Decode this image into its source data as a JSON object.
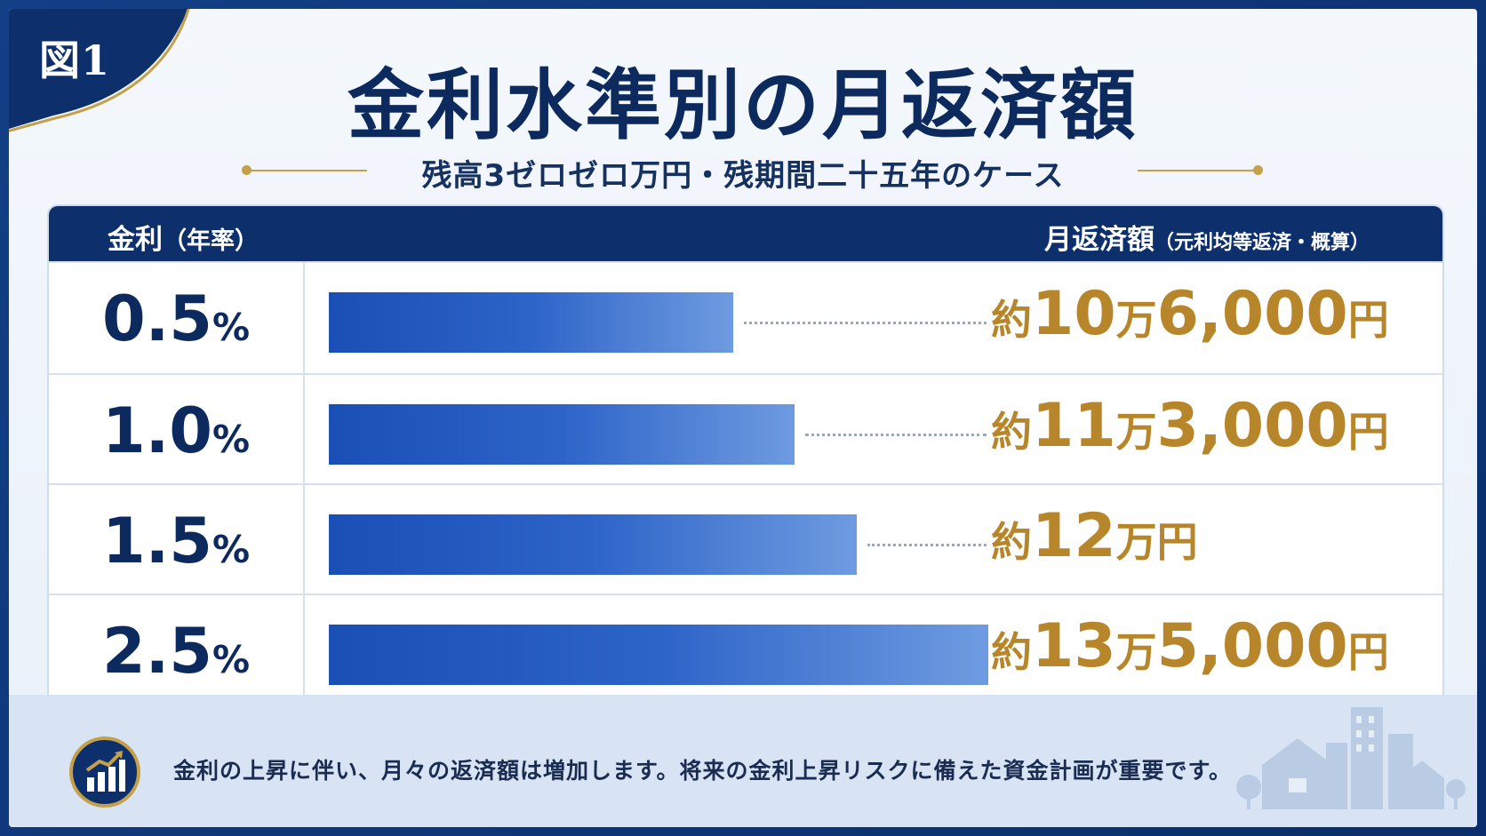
{
  "figure_label": "図1",
  "title": "金利水準別の月返済額",
  "subtitle": "残高3ゼロゼロ万円・残期間二十五年のケース",
  "table_header": {
    "left_label": "金利",
    "left_paren": "（年率）",
    "right_label": "月返済額",
    "right_small": "（元利均等返済・概算）"
  },
  "footer_text": "金利の上昇に伴い、月々の返済額は増加します。将来の金利上昇リスクに備えた資金計画が重要です。",
  "icons": [
    "chart-growth-icon",
    "city-illustration-icon"
  ],
  "colors": {
    "navy": "#0d2f6b",
    "gold": "#b8862a",
    "bar": "#2d64c8"
  },
  "chart_data": {
    "type": "bar",
    "orientation": "horizontal",
    "categories": [
      "0.5",
      "1.0",
      "1.5",
      "2.5"
    ],
    "category_unit": "%",
    "values": [
      106000,
      113000,
      120000,
      135000
    ],
    "value_labels": [
      {
        "prefix": "約",
        "main": "10",
        "unit1": "万",
        "rest": "6,000",
        "unit2": "円"
      },
      {
        "prefix": "約",
        "main": "11",
        "unit1": "万",
        "rest": "3,000",
        "unit2": "円"
      },
      {
        "prefix": "約",
        "main": "12",
        "unit1": "万",
        "rest": "",
        "unit2": "円"
      },
      {
        "prefix": "約",
        "main": "13",
        "unit1": "万",
        "rest": "5,000",
        "unit2": "円"
      }
    ],
    "xlim": [
      0,
      135000
    ]
  }
}
